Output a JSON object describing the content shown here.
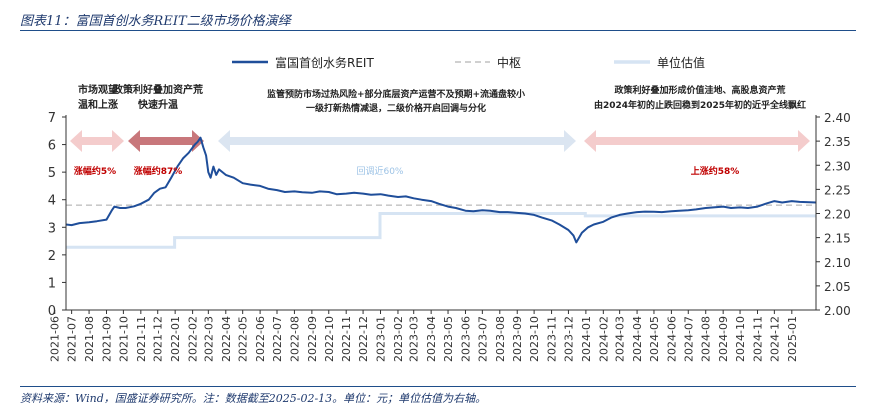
{
  "figure": {
    "title": "图表11：富国首创水务REIT二级市场价格演绎",
    "source": "资料来源：Wind，国盛证券研究所。注：数据截至2025-02-13。单位：元；单位估值为右轴。"
  },
  "colors": {
    "price": "#1f4e9a",
    "center": "#c9c9c9",
    "valuation": "#d6e4f3",
    "up_arrow_light": "#f4cccc",
    "up_arrow_dark": "#c8777b",
    "down_arrow": "#dbe5f1",
    "up_text": "#c00000",
    "down_text": "#9dc3e6",
    "axis": "#333333"
  },
  "annotations": {
    "phase1_title_l1": "市场观望",
    "phase1_title_l2": "温和上涨",
    "phase1_change": "涨幅约5%",
    "phase2_title_l1": "政策利好叠加资产荒",
    "phase2_title_l2": "快速升温",
    "phase2_change": "涨幅约87%",
    "phase3_title_l1": "监管预防市场过热风险+部分底层资产运营不及预期+流通盘较小",
    "phase3_title_l2": "一级打新热情减退，二级价格开启回调与分化",
    "phase3_change": "回调近60%",
    "phase4_title_l1": "政策利好叠加形成价值洼地、高股息资产荒",
    "phase4_title_l2": "由2024年初的止跌回稳到2025年初的近乎全线飘红",
    "phase4_change": "上涨约58%"
  },
  "chart_data": {
    "type": "line",
    "title": "",
    "legend": [
      "富国首创水务REIT",
      "中枢",
      "单位估值"
    ],
    "legend_position": "top",
    "grid": false,
    "x_ticks": [
      "2021-06",
      "2021-07",
      "2021-08",
      "2021-09",
      "2021-10",
      "2021-11",
      "2021-12",
      "2022-01",
      "2022-02",
      "2022-03",
      "2022-04",
      "2022-05",
      "2022-06",
      "2022-07",
      "2022-08",
      "2022-09",
      "2022-10",
      "2022-11",
      "2022-12",
      "2023-01",
      "2023-02",
      "2023-03",
      "2023-04",
      "2023-05",
      "2023-06",
      "2023-07",
      "2023-08",
      "2023-09",
      "2023-10",
      "2023-11",
      "2023-12",
      "2024-01",
      "2024-02",
      "2024-03",
      "2024-04",
      "2024-05",
      "2024-06",
      "2024-07",
      "2024-08",
      "2024-09",
      "2024-10",
      "2024-11",
      "2024-12",
      "2025-01"
    ],
    "y_left": {
      "min": 0,
      "max": 7,
      "ticks": [
        "0",
        "1",
        "2",
        "3",
        "4",
        "5",
        "6",
        "7"
      ]
    },
    "y_right": {
      "min": 2.0,
      "max": 2.4,
      "ticks": [
        "2.00",
        "2.05",
        "2.10",
        "2.15",
        "2.20",
        "2.25",
        "2.30",
        "2.35",
        "2.40"
      ]
    },
    "series": [
      {
        "name": "富国首创水务REIT",
        "axis": "left",
        "points": [
          [
            "2021-06-21",
            3.1
          ],
          [
            "2021-07-01",
            3.08
          ],
          [
            "2021-07-15",
            3.15
          ],
          [
            "2021-08-01",
            3.18
          ],
          [
            "2021-08-15",
            3.22
          ],
          [
            "2021-09-01",
            3.28
          ],
          [
            "2021-09-10",
            3.6
          ],
          [
            "2021-09-15",
            3.75
          ],
          [
            "2021-09-25",
            3.7
          ],
          [
            "2021-10-05",
            3.7
          ],
          [
            "2021-10-20",
            3.76
          ],
          [
            "2021-11-01",
            3.85
          ],
          [
            "2021-11-15",
            4.0
          ],
          [
            "2021-11-25",
            4.25
          ],
          [
            "2021-12-05",
            4.4
          ],
          [
            "2021-12-15",
            4.45
          ],
          [
            "2021-12-25",
            4.8
          ],
          [
            "2022-01-05",
            5.2
          ],
          [
            "2022-01-15",
            5.5
          ],
          [
            "2022-01-25",
            5.7
          ],
          [
            "2022-02-05",
            6.0
          ],
          [
            "2022-02-10",
            6.1
          ],
          [
            "2022-02-15",
            6.25
          ],
          [
            "2022-02-20",
            5.9
          ],
          [
            "2022-02-25",
            5.6
          ],
          [
            "2022-03-01",
            5.0
          ],
          [
            "2022-03-05",
            4.8
          ],
          [
            "2022-03-10",
            5.2
          ],
          [
            "2022-03-15",
            4.9
          ],
          [
            "2022-03-20",
            5.1
          ],
          [
            "2022-04-01",
            4.9
          ],
          [
            "2022-04-15",
            4.8
          ],
          [
            "2022-05-01",
            4.6
          ],
          [
            "2022-05-15",
            4.55
          ],
          [
            "2022-06-01",
            4.5
          ],
          [
            "2022-06-15",
            4.4
          ],
          [
            "2022-07-01",
            4.35
          ],
          [
            "2022-07-15",
            4.28
          ],
          [
            "2022-08-01",
            4.3
          ],
          [
            "2022-08-15",
            4.27
          ],
          [
            "2022-09-01",
            4.25
          ],
          [
            "2022-09-15",
            4.3
          ],
          [
            "2022-10-01",
            4.28
          ],
          [
            "2022-10-15",
            4.2
          ],
          [
            "2022-11-01",
            4.22
          ],
          [
            "2022-11-15",
            4.25
          ],
          [
            "2022-12-01",
            4.22
          ],
          [
            "2022-12-15",
            4.18
          ],
          [
            "2023-01-01",
            4.2
          ],
          [
            "2023-01-15",
            4.15
          ],
          [
            "2023-02-01",
            4.1
          ],
          [
            "2023-02-15",
            4.12
          ],
          [
            "2023-03-01",
            4.05
          ],
          [
            "2023-03-15",
            4.0
          ],
          [
            "2023-04-01",
            3.95
          ],
          [
            "2023-04-15",
            3.85
          ],
          [
            "2023-05-01",
            3.75
          ],
          [
            "2023-05-15",
            3.7
          ],
          [
            "2023-06-01",
            3.6
          ],
          [
            "2023-06-15",
            3.58
          ],
          [
            "2023-07-01",
            3.62
          ],
          [
            "2023-07-15",
            3.6
          ],
          [
            "2023-08-01",
            3.55
          ],
          [
            "2023-08-15",
            3.55
          ],
          [
            "2023-09-01",
            3.52
          ],
          [
            "2023-09-15",
            3.5
          ],
          [
            "2023-10-01",
            3.45
          ],
          [
            "2023-10-15",
            3.35
          ],
          [
            "2023-11-01",
            3.25
          ],
          [
            "2023-11-15",
            3.1
          ],
          [
            "2023-12-01",
            2.9
          ],
          [
            "2023-12-10",
            2.7
          ],
          [
            "2023-12-15",
            2.45
          ],
          [
            "2023-12-25",
            2.8
          ],
          [
            "2024-01-05",
            3.0
          ],
          [
            "2024-01-15",
            3.1
          ],
          [
            "2024-02-01",
            3.2
          ],
          [
            "2024-02-15",
            3.35
          ],
          [
            "2024-03-01",
            3.45
          ],
          [
            "2024-03-15",
            3.5
          ],
          [
            "2024-04-01",
            3.55
          ],
          [
            "2024-04-15",
            3.57
          ],
          [
            "2024-05-01",
            3.56
          ],
          [
            "2024-05-15",
            3.55
          ],
          [
            "2024-06-01",
            3.58
          ],
          [
            "2024-06-15",
            3.6
          ],
          [
            "2024-07-01",
            3.62
          ],
          [
            "2024-07-15",
            3.65
          ],
          [
            "2024-08-01",
            3.7
          ],
          [
            "2024-08-15",
            3.72
          ],
          [
            "2024-09-01",
            3.75
          ],
          [
            "2024-09-15",
            3.7
          ],
          [
            "2024-10-01",
            3.72
          ],
          [
            "2024-10-15",
            3.7
          ],
          [
            "2024-11-01",
            3.75
          ],
          [
            "2024-11-15",
            3.85
          ],
          [
            "2024-12-01",
            3.95
          ],
          [
            "2024-12-15",
            3.9
          ],
          [
            "2025-01-01",
            3.95
          ],
          [
            "2025-01-15",
            3.92
          ],
          [
            "2025-02-13",
            3.9
          ]
        ]
      },
      {
        "name": "中枢",
        "axis": "left",
        "points": [
          [
            "2021-06-21",
            3.8
          ],
          [
            "2025-02-13",
            3.8
          ]
        ]
      },
      {
        "name": "单位估值",
        "axis": "right",
        "points": [
          [
            "2021-06-21",
            2.13
          ],
          [
            "2021-12-31",
            2.13
          ],
          [
            "2021-12-31",
            2.15
          ],
          [
            "2022-12-31",
            2.15
          ],
          [
            "2022-12-31",
            2.2
          ],
          [
            "2023-12-31",
            2.2
          ],
          [
            "2023-12-31",
            2.195
          ],
          [
            "2025-02-13",
            2.195
          ]
        ]
      }
    ]
  }
}
